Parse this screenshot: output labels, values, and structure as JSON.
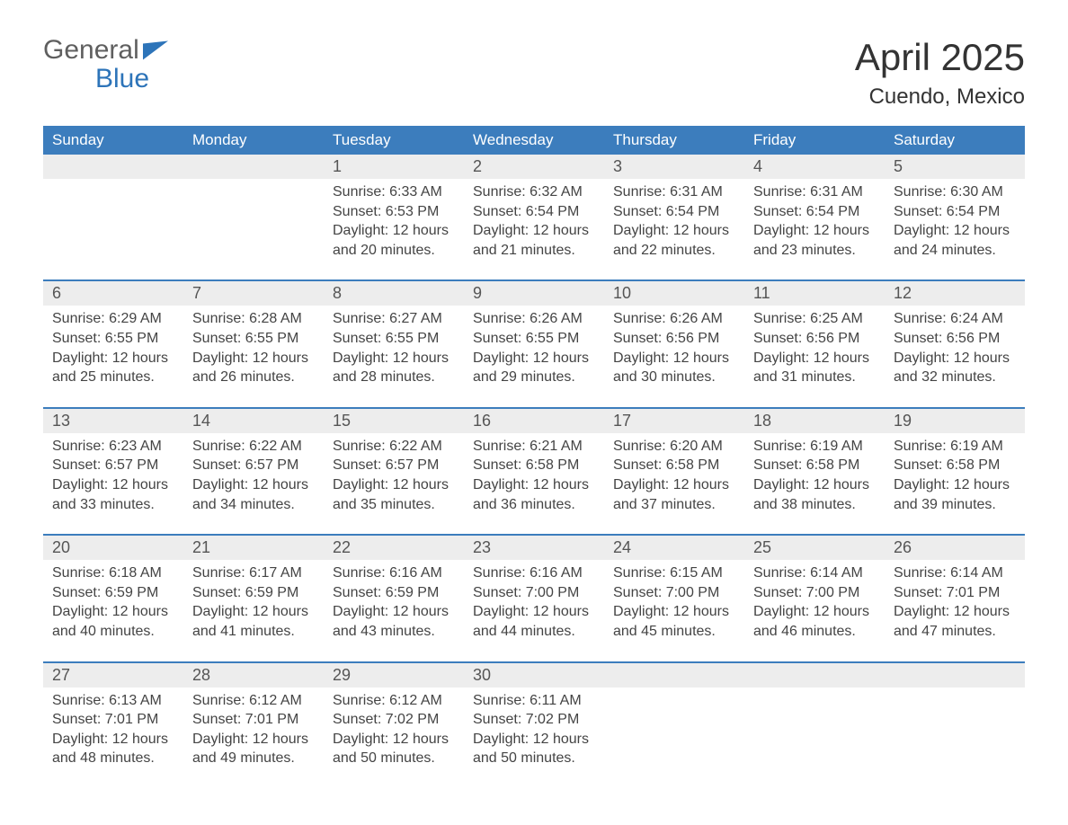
{
  "logo": {
    "word1": "General",
    "word2": "Blue"
  },
  "title": "April 2025",
  "subtitle": "Cuendo, Mexico",
  "colors": {
    "header_bg": "#3c7dbd",
    "header_text": "#ffffff",
    "daynum_bg": "#ededed",
    "text": "#444444",
    "logo_gray": "#5f5f5f",
    "logo_blue": "#2d74b9",
    "week_border": "#3c7dbd",
    "page_bg": "#ffffff"
  },
  "fontsize": {
    "title": 42,
    "subtitle": 24,
    "dayhead": 17,
    "daynum": 18,
    "body": 16
  },
  "day_names": [
    "Sunday",
    "Monday",
    "Tuesday",
    "Wednesday",
    "Thursday",
    "Friday",
    "Saturday"
  ],
  "weeks": [
    [
      null,
      null,
      {
        "n": "1",
        "sr": "Sunrise: 6:33 AM",
        "ss": "Sunset: 6:53 PM",
        "d1": "Daylight: 12 hours",
        "d2": "and 20 minutes."
      },
      {
        "n": "2",
        "sr": "Sunrise: 6:32 AM",
        "ss": "Sunset: 6:54 PM",
        "d1": "Daylight: 12 hours",
        "d2": "and 21 minutes."
      },
      {
        "n": "3",
        "sr": "Sunrise: 6:31 AM",
        "ss": "Sunset: 6:54 PM",
        "d1": "Daylight: 12 hours",
        "d2": "and 22 minutes."
      },
      {
        "n": "4",
        "sr": "Sunrise: 6:31 AM",
        "ss": "Sunset: 6:54 PM",
        "d1": "Daylight: 12 hours",
        "d2": "and 23 minutes."
      },
      {
        "n": "5",
        "sr": "Sunrise: 6:30 AM",
        "ss": "Sunset: 6:54 PM",
        "d1": "Daylight: 12 hours",
        "d2": "and 24 minutes."
      }
    ],
    [
      {
        "n": "6",
        "sr": "Sunrise: 6:29 AM",
        "ss": "Sunset: 6:55 PM",
        "d1": "Daylight: 12 hours",
        "d2": "and 25 minutes."
      },
      {
        "n": "7",
        "sr": "Sunrise: 6:28 AM",
        "ss": "Sunset: 6:55 PM",
        "d1": "Daylight: 12 hours",
        "d2": "and 26 minutes."
      },
      {
        "n": "8",
        "sr": "Sunrise: 6:27 AM",
        "ss": "Sunset: 6:55 PM",
        "d1": "Daylight: 12 hours",
        "d2": "and 28 minutes."
      },
      {
        "n": "9",
        "sr": "Sunrise: 6:26 AM",
        "ss": "Sunset: 6:55 PM",
        "d1": "Daylight: 12 hours",
        "d2": "and 29 minutes."
      },
      {
        "n": "10",
        "sr": "Sunrise: 6:26 AM",
        "ss": "Sunset: 6:56 PM",
        "d1": "Daylight: 12 hours",
        "d2": "and 30 minutes."
      },
      {
        "n": "11",
        "sr": "Sunrise: 6:25 AM",
        "ss": "Sunset: 6:56 PM",
        "d1": "Daylight: 12 hours",
        "d2": "and 31 minutes."
      },
      {
        "n": "12",
        "sr": "Sunrise: 6:24 AM",
        "ss": "Sunset: 6:56 PM",
        "d1": "Daylight: 12 hours",
        "d2": "and 32 minutes."
      }
    ],
    [
      {
        "n": "13",
        "sr": "Sunrise: 6:23 AM",
        "ss": "Sunset: 6:57 PM",
        "d1": "Daylight: 12 hours",
        "d2": "and 33 minutes."
      },
      {
        "n": "14",
        "sr": "Sunrise: 6:22 AM",
        "ss": "Sunset: 6:57 PM",
        "d1": "Daylight: 12 hours",
        "d2": "and 34 minutes."
      },
      {
        "n": "15",
        "sr": "Sunrise: 6:22 AM",
        "ss": "Sunset: 6:57 PM",
        "d1": "Daylight: 12 hours",
        "d2": "and 35 minutes."
      },
      {
        "n": "16",
        "sr": "Sunrise: 6:21 AM",
        "ss": "Sunset: 6:58 PM",
        "d1": "Daylight: 12 hours",
        "d2": "and 36 minutes."
      },
      {
        "n": "17",
        "sr": "Sunrise: 6:20 AM",
        "ss": "Sunset: 6:58 PM",
        "d1": "Daylight: 12 hours",
        "d2": "and 37 minutes."
      },
      {
        "n": "18",
        "sr": "Sunrise: 6:19 AM",
        "ss": "Sunset: 6:58 PM",
        "d1": "Daylight: 12 hours",
        "d2": "and 38 minutes."
      },
      {
        "n": "19",
        "sr": "Sunrise: 6:19 AM",
        "ss": "Sunset: 6:58 PM",
        "d1": "Daylight: 12 hours",
        "d2": "and 39 minutes."
      }
    ],
    [
      {
        "n": "20",
        "sr": "Sunrise: 6:18 AM",
        "ss": "Sunset: 6:59 PM",
        "d1": "Daylight: 12 hours",
        "d2": "and 40 minutes."
      },
      {
        "n": "21",
        "sr": "Sunrise: 6:17 AM",
        "ss": "Sunset: 6:59 PM",
        "d1": "Daylight: 12 hours",
        "d2": "and 41 minutes."
      },
      {
        "n": "22",
        "sr": "Sunrise: 6:16 AM",
        "ss": "Sunset: 6:59 PM",
        "d1": "Daylight: 12 hours",
        "d2": "and 43 minutes."
      },
      {
        "n": "23",
        "sr": "Sunrise: 6:16 AM",
        "ss": "Sunset: 7:00 PM",
        "d1": "Daylight: 12 hours",
        "d2": "and 44 minutes."
      },
      {
        "n": "24",
        "sr": "Sunrise: 6:15 AM",
        "ss": "Sunset: 7:00 PM",
        "d1": "Daylight: 12 hours",
        "d2": "and 45 minutes."
      },
      {
        "n": "25",
        "sr": "Sunrise: 6:14 AM",
        "ss": "Sunset: 7:00 PM",
        "d1": "Daylight: 12 hours",
        "d2": "and 46 minutes."
      },
      {
        "n": "26",
        "sr": "Sunrise: 6:14 AM",
        "ss": "Sunset: 7:01 PM",
        "d1": "Daylight: 12 hours",
        "d2": "and 47 minutes."
      }
    ],
    [
      {
        "n": "27",
        "sr": "Sunrise: 6:13 AM",
        "ss": "Sunset: 7:01 PM",
        "d1": "Daylight: 12 hours",
        "d2": "and 48 minutes."
      },
      {
        "n": "28",
        "sr": "Sunrise: 6:12 AM",
        "ss": "Sunset: 7:01 PM",
        "d1": "Daylight: 12 hours",
        "d2": "and 49 minutes."
      },
      {
        "n": "29",
        "sr": "Sunrise: 6:12 AM",
        "ss": "Sunset: 7:02 PM",
        "d1": "Daylight: 12 hours",
        "d2": "and 50 minutes."
      },
      {
        "n": "30",
        "sr": "Sunrise: 6:11 AM",
        "ss": "Sunset: 7:02 PM",
        "d1": "Daylight: 12 hours",
        "d2": "and 50 minutes."
      },
      null,
      null,
      null
    ]
  ]
}
